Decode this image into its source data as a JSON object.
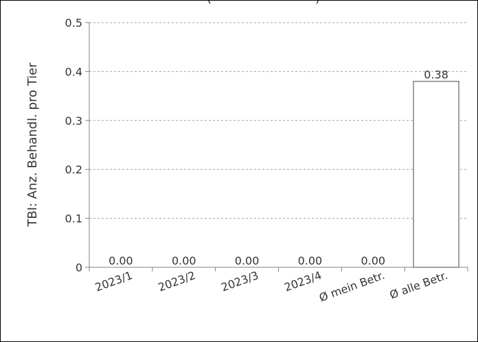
{
  "chart_data": {
    "type": "bar",
    "title": "(",
    "title_suffix": ")",
    "ylabel": "TBI: Anz. Behandl. pro Tier",
    "xlabel": "",
    "categories": [
      "2023/1",
      "2023/2",
      "2023/3",
      "2023/4",
      "Ø mein Betr.",
      "Ø alle Betr."
    ],
    "values": [
      0.0,
      0.0,
      0.0,
      0.0,
      0.0,
      0.38
    ],
    "value_labels": [
      "0.00",
      "0.00",
      "0.00",
      "0.00",
      "0.00",
      "0.38"
    ],
    "ylim": [
      0,
      0.5
    ],
    "yticks": [
      0,
      0.1,
      0.2,
      0.3,
      0.4,
      0.5
    ],
    "ytick_labels": [
      "0",
      "0.1",
      "0.2",
      "0.3",
      "0.4",
      "0.5"
    ],
    "grid": true,
    "legend": "none"
  },
  "colors": {
    "bar_fill": "#ffffff",
    "bar_stroke": "#808080",
    "grid": "#a0a0a0",
    "axis": "#808080",
    "text": "#333333",
    "frame": "#000000"
  }
}
